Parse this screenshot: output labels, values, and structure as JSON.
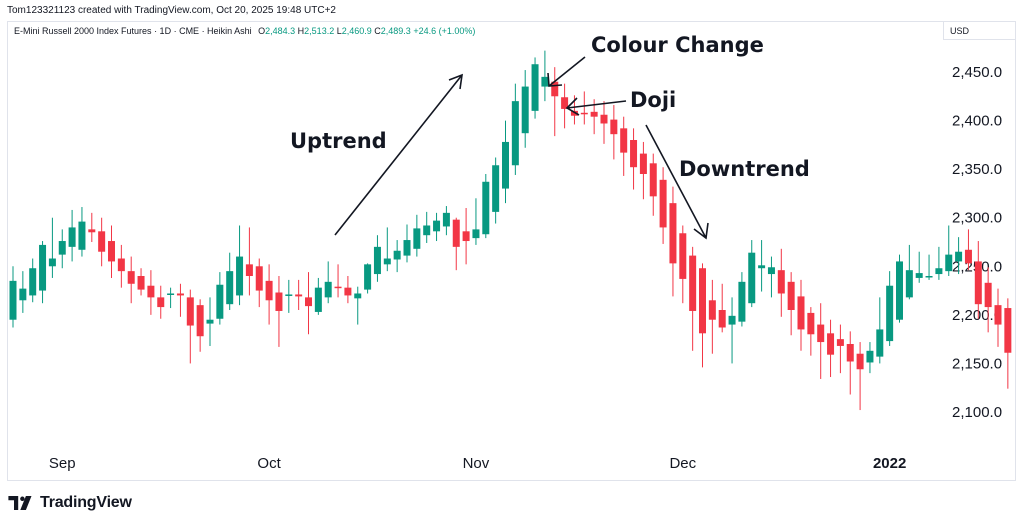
{
  "header": {
    "credit": "Tom123321123 created with TradingView.com, Oct 20, 2025 19:48 UTC+2",
    "symbol": "E-Mini Russell 2000 Index Futures · 1D · CME · Heikin Ashi",
    "ohlc": {
      "o_label": "O",
      "o": "2,484.3",
      "h_label": "H",
      "h": "2,513.2",
      "l_label": "L",
      "l": "2,460.9",
      "c_label": "C",
      "c": "2,489.3",
      "change": "+24.6 (+1.00%)"
    },
    "currency": "USD"
  },
  "footer": {
    "brand": "TradingView"
  },
  "colors": {
    "up": "#089981",
    "down": "#f23645",
    "text": "#131722",
    "border": "#e0e3eb"
  },
  "chart_data": {
    "type": "candlestick",
    "subtype": "heikin-ashi",
    "ylim": [
      2075,
      2480
    ],
    "y_ticks": [
      2100,
      2150,
      2200,
      2250,
      2300,
      2350,
      2400,
      2450
    ],
    "y_tick_labels": [
      "2,100.0",
      "2,150.0",
      "2,200.0",
      "2,250.0",
      "2,300.0",
      "2,350.0",
      "2,400.0",
      "2,450.0"
    ],
    "x_ticks": [
      {
        "label": "Sep",
        "index": 5,
        "bold": false
      },
      {
        "label": "Oct",
        "index": 26,
        "bold": false
      },
      {
        "label": "Nov",
        "index": 47,
        "bold": false
      },
      {
        "label": "Dec",
        "index": 68,
        "bold": false
      },
      {
        "label": "2022",
        "index": 89,
        "bold": true
      }
    ],
    "candles": [
      {
        "o": 2195,
        "h": 2250,
        "l": 2187,
        "c": 2235
      },
      {
        "o": 2215,
        "h": 2245,
        "l": 2202,
        "c": 2227
      },
      {
        "o": 2220,
        "h": 2258,
        "l": 2213,
        "c": 2248
      },
      {
        "o": 2225,
        "h": 2276,
        "l": 2212,
        "c": 2272
      },
      {
        "o": 2250,
        "h": 2300,
        "l": 2238,
        "c": 2258
      },
      {
        "o": 2262,
        "h": 2288,
        "l": 2248,
        "c": 2276
      },
      {
        "o": 2270,
        "h": 2308,
        "l": 2255,
        "c": 2290
      },
      {
        "o": 2267,
        "h": 2311,
        "l": 2260,
        "c": 2296
      },
      {
        "o": 2288,
        "h": 2305,
        "l": 2275,
        "c": 2285
      },
      {
        "o": 2286,
        "h": 2300,
        "l": 2250,
        "c": 2265
      },
      {
        "o": 2276,
        "h": 2292,
        "l": 2238,
        "c": 2255
      },
      {
        "o": 2258,
        "h": 2272,
        "l": 2228,
        "c": 2245
      },
      {
        "o": 2245,
        "h": 2260,
        "l": 2212,
        "c": 2232
      },
      {
        "o": 2240,
        "h": 2248,
        "l": 2220,
        "c": 2226
      },
      {
        "o": 2230,
        "h": 2246,
        "l": 2200,
        "c": 2218
      },
      {
        "o": 2218,
        "h": 2230,
        "l": 2196,
        "c": 2208
      },
      {
        "o": 2222,
        "h": 2228,
        "l": 2207,
        "c": 2222
      },
      {
        "o": 2222,
        "h": 2232,
        "l": 2198,
        "c": 2220
      },
      {
        "o": 2218,
        "h": 2226,
        "l": 2150,
        "c": 2189
      },
      {
        "o": 2210,
        "h": 2216,
        "l": 2162,
        "c": 2178
      },
      {
        "o": 2191,
        "h": 2218,
        "l": 2168,
        "c": 2195
      },
      {
        "o": 2196,
        "h": 2244,
        "l": 2190,
        "c": 2231
      },
      {
        "o": 2211,
        "h": 2264,
        "l": 2205,
        "c": 2245
      },
      {
        "o": 2220,
        "h": 2292,
        "l": 2210,
        "c": 2260
      },
      {
        "o": 2252,
        "h": 2290,
        "l": 2220,
        "c": 2240
      },
      {
        "o": 2250,
        "h": 2258,
        "l": 2208,
        "c": 2225
      },
      {
        "o": 2235,
        "h": 2252,
        "l": 2190,
        "c": 2215
      },
      {
        "o": 2223,
        "h": 2240,
        "l": 2167,
        "c": 2204
      },
      {
        "o": 2221,
        "h": 2236,
        "l": 2202,
        "c": 2221
      },
      {
        "o": 2221,
        "h": 2236,
        "l": 2205,
        "c": 2219
      },
      {
        "o": 2218,
        "h": 2244,
        "l": 2180,
        "c": 2209
      },
      {
        "o": 2203,
        "h": 2238,
        "l": 2200,
        "c": 2228
      },
      {
        "o": 2218,
        "h": 2255,
        "l": 2212,
        "c": 2234
      },
      {
        "o": 2229,
        "h": 2252,
        "l": 2218,
        "c": 2228
      },
      {
        "o": 2228,
        "h": 2240,
        "l": 2212,
        "c": 2220
      },
      {
        "o": 2217,
        "h": 2229,
        "l": 2190,
        "c": 2222
      },
      {
        "o": 2226,
        "h": 2253,
        "l": 2222,
        "c": 2252
      },
      {
        "o": 2242,
        "h": 2282,
        "l": 2234,
        "c": 2270
      },
      {
        "o": 2252,
        "h": 2290,
        "l": 2245,
        "c": 2258
      },
      {
        "o": 2257,
        "h": 2277,
        "l": 2244,
        "c": 2266
      },
      {
        "o": 2261,
        "h": 2293,
        "l": 2254,
        "c": 2277
      },
      {
        "o": 2268,
        "h": 2303,
        "l": 2260,
        "c": 2289
      },
      {
        "o": 2282,
        "h": 2306,
        "l": 2274,
        "c": 2292
      },
      {
        "o": 2286,
        "h": 2305,
        "l": 2276,
        "c": 2297
      },
      {
        "o": 2291,
        "h": 2312,
        "l": 2282,
        "c": 2305
      },
      {
        "o": 2298,
        "h": 2300,
        "l": 2246,
        "c": 2270
      },
      {
        "o": 2286,
        "h": 2310,
        "l": 2252,
        "c": 2276
      },
      {
        "o": 2279,
        "h": 2320,
        "l": 2272,
        "c": 2288
      },
      {
        "o": 2283,
        "h": 2345,
        "l": 2279,
        "c": 2337
      },
      {
        "o": 2306,
        "h": 2362,
        "l": 2294,
        "c": 2354
      },
      {
        "o": 2330,
        "h": 2400,
        "l": 2315,
        "c": 2378
      },
      {
        "o": 2354,
        "h": 2438,
        "l": 2344,
        "c": 2420
      },
      {
        "o": 2387,
        "h": 2452,
        "l": 2372,
        "c": 2435
      },
      {
        "o": 2410,
        "h": 2465,
        "l": 2402,
        "c": 2458
      },
      {
        "o": 2435,
        "h": 2472,
        "l": 2420,
        "c": 2445
      },
      {
        "o": 2440,
        "h": 2455,
        "l": 2384,
        "c": 2425
      },
      {
        "o": 2424,
        "h": 2438,
        "l": 2392,
        "c": 2412
      },
      {
        "o": 2410,
        "h": 2426,
        "l": 2396,
        "c": 2405
      },
      {
        "o": 2408,
        "h": 2430,
        "l": 2396,
        "c": 2407
      },
      {
        "o": 2409,
        "h": 2422,
        "l": 2386,
        "c": 2404
      },
      {
        "o": 2406,
        "h": 2420,
        "l": 2376,
        "c": 2397
      },
      {
        "o": 2401,
        "h": 2416,
        "l": 2360,
        "c": 2386
      },
      {
        "o": 2392,
        "h": 2404,
        "l": 2343,
        "c": 2367
      },
      {
        "o": 2380,
        "h": 2392,
        "l": 2329,
        "c": 2352
      },
      {
        "o": 2366,
        "h": 2378,
        "l": 2319,
        "c": 2345
      },
      {
        "o": 2356,
        "h": 2366,
        "l": 2302,
        "c": 2322
      },
      {
        "o": 2339,
        "h": 2352,
        "l": 2273,
        "c": 2290
      },
      {
        "o": 2315,
        "h": 2332,
        "l": 2219,
        "c": 2253
      },
      {
        "o": 2284,
        "h": 2292,
        "l": 2212,
        "c": 2237
      },
      {
        "o": 2261,
        "h": 2270,
        "l": 2163,
        "c": 2204
      },
      {
        "o": 2248,
        "h": 2253,
        "l": 2146,
        "c": 2181
      },
      {
        "o": 2215,
        "h": 2236,
        "l": 2160,
        "c": 2195
      },
      {
        "o": 2205,
        "h": 2232,
        "l": 2182,
        "c": 2187
      },
      {
        "o": 2190,
        "h": 2218,
        "l": 2150,
        "c": 2199
      },
      {
        "o": 2193,
        "h": 2244,
        "l": 2188,
        "c": 2234
      },
      {
        "o": 2212,
        "h": 2277,
        "l": 2208,
        "c": 2264
      },
      {
        "o": 2248,
        "h": 2277,
        "l": 2224,
        "c": 2251
      },
      {
        "o": 2242,
        "h": 2260,
        "l": 2218,
        "c": 2249
      },
      {
        "o": 2246,
        "h": 2268,
        "l": 2198,
        "c": 2222
      },
      {
        "o": 2234,
        "h": 2244,
        "l": 2179,
        "c": 2205
      },
      {
        "o": 2219,
        "h": 2236,
        "l": 2163,
        "c": 2185
      },
      {
        "o": 2202,
        "h": 2208,
        "l": 2158,
        "c": 2180
      },
      {
        "o": 2190,
        "h": 2212,
        "l": 2134,
        "c": 2172
      },
      {
        "o": 2181,
        "h": 2195,
        "l": 2136,
        "c": 2159
      },
      {
        "o": 2175,
        "h": 2190,
        "l": 2140,
        "c": 2168
      },
      {
        "o": 2170,
        "h": 2183,
        "l": 2118,
        "c": 2152
      },
      {
        "o": 2160,
        "h": 2172,
        "l": 2102,
        "c": 2144
      },
      {
        "o": 2151,
        "h": 2172,
        "l": 2140,
        "c": 2163
      },
      {
        "o": 2157,
        "h": 2218,
        "l": 2150,
        "c": 2185
      },
      {
        "o": 2173,
        "h": 2245,
        "l": 2168,
        "c": 2230
      },
      {
        "o": 2195,
        "h": 2262,
        "l": 2192,
        "c": 2255
      },
      {
        "o": 2218,
        "h": 2272,
        "l": 2216,
        "c": 2246
      },
      {
        "o": 2238,
        "h": 2265,
        "l": 2233,
        "c": 2243
      },
      {
        "o": 2240,
        "h": 2262,
        "l": 2236,
        "c": 2240
      },
      {
        "o": 2242,
        "h": 2270,
        "l": 2236,
        "c": 2248
      },
      {
        "o": 2245,
        "h": 2292,
        "l": 2240,
        "c": 2262
      },
      {
        "o": 2255,
        "h": 2280,
        "l": 2242,
        "c": 2265
      },
      {
        "o": 2267,
        "h": 2288,
        "l": 2246,
        "c": 2253
      },
      {
        "o": 2255,
        "h": 2276,
        "l": 2196,
        "c": 2211
      },
      {
        "o": 2233,
        "h": 2249,
        "l": 2182,
        "c": 2208
      },
      {
        "o": 2210,
        "h": 2227,
        "l": 2167,
        "c": 2190
      },
      {
        "o": 2207,
        "h": 2217,
        "l": 2124,
        "c": 2161
      }
    ],
    "annotations": [
      {
        "name": "uptrend-label",
        "text": "Uptrend"
      },
      {
        "name": "colour-change-label",
        "text": "Colour Change"
      },
      {
        "name": "doji-label",
        "text": "Doji"
      },
      {
        "name": "downtrend-label",
        "text": "Downtrend"
      }
    ]
  }
}
